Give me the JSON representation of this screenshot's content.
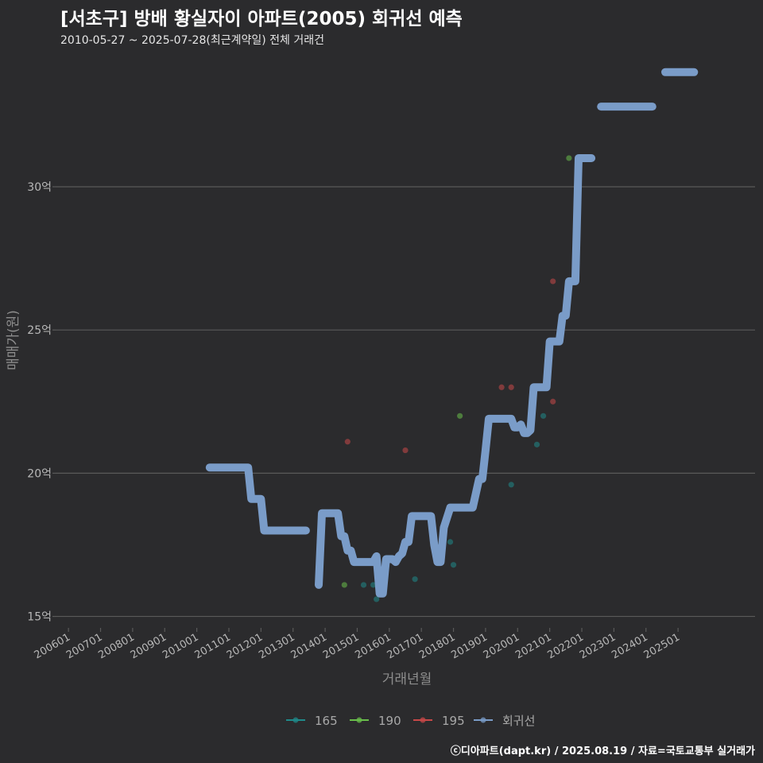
{
  "header": {
    "title": "[서초구] 방배 황실자이 아파트(2005) 회귀선 예측",
    "subtitle": "2010-05-27 ~ 2025-07-28(최근계약일) 전체 거래건"
  },
  "footer": {
    "credit": "ⓒ디아파트(dapt.kr) / 2025.08.19 / 자료=국토교통부 실거래가"
  },
  "colors": {
    "background": "#2b2b2d",
    "grid": "#5a5a5a",
    "s165": "#1f8a8a",
    "s190": "#6abf4b",
    "s195": "#c84848",
    "regression": "#7a9cc8"
  },
  "chart_data": {
    "type": "line",
    "title": "[서초구] 방배 황실자이 아파트(2005) 회귀선 예측",
    "xlabel": "거래년월",
    "ylabel": "매매가(원)",
    "xlim": [
      2005.6,
      2027.4
    ],
    "ylim": [
      14.6,
      34.8
    ],
    "x_ticks": [
      {
        "x": 2006.0,
        "label": "200601"
      },
      {
        "x": 2007.0,
        "label": "200701"
      },
      {
        "x": 2008.0,
        "label": "200801"
      },
      {
        "x": 2009.0,
        "label": "200901"
      },
      {
        "x": 2010.0,
        "label": "201001"
      },
      {
        "x": 2011.0,
        "label": "201101"
      },
      {
        "x": 2012.0,
        "label": "201201"
      },
      {
        "x": 2013.0,
        "label": "201301"
      },
      {
        "x": 2014.0,
        "label": "201401"
      },
      {
        "x": 2015.0,
        "label": "201501"
      },
      {
        "x": 2016.0,
        "label": "201601"
      },
      {
        "x": 2017.0,
        "label": "201701"
      },
      {
        "x": 2018.0,
        "label": "201801"
      },
      {
        "x": 2019.0,
        "label": "201901"
      },
      {
        "x": 2020.0,
        "label": "202001"
      },
      {
        "x": 2021.0,
        "label": "202101"
      },
      {
        "x": 2022.0,
        "label": "202201"
      },
      {
        "x": 2023.0,
        "label": "202301"
      },
      {
        "x": 2024.0,
        "label": "202401"
      },
      {
        "x": 2025.0,
        "label": "202501"
      }
    ],
    "y_ticks": [
      {
        "y": 15,
        "label": "15억"
      },
      {
        "y": 20,
        "label": "20억"
      },
      {
        "y": 25,
        "label": "25억"
      },
      {
        "y": 30,
        "label": "30억"
      }
    ],
    "legend": [
      "165",
      "190",
      "195",
      "회귀선"
    ],
    "series": [
      {
        "name": "165",
        "kind": "scatter",
        "color": "#1f8a8a",
        "points": [
          [
            2015.2,
            16.1
          ],
          [
            2015.5,
            16.1
          ],
          [
            2015.6,
            15.6
          ],
          [
            2016.8,
            16.3
          ],
          [
            2017.9,
            17.6
          ],
          [
            2018.0,
            16.8
          ],
          [
            2019.8,
            19.6
          ],
          [
            2020.6,
            21.0
          ],
          [
            2020.8,
            22.0
          ]
        ]
      },
      {
        "name": "190",
        "kind": "scatter",
        "color": "#6abf4b",
        "points": [
          [
            2014.6,
            16.1
          ],
          [
            2018.2,
            22.0
          ],
          [
            2021.6,
            31.0
          ]
        ]
      },
      {
        "name": "195",
        "kind": "scatter",
        "color": "#c84848",
        "points": [
          [
            2014.7,
            21.1
          ],
          [
            2016.5,
            20.8
          ],
          [
            2019.5,
            23.0
          ],
          [
            2019.8,
            23.0
          ],
          [
            2021.1,
            22.5
          ],
          [
            2021.1,
            26.7
          ]
        ]
      },
      {
        "name": "회귀선",
        "kind": "line",
        "color": "#7a9cc8",
        "segments": [
          [
            [
              2010.4,
              20.2
            ],
            [
              2011.6,
              20.2
            ],
            [
              2011.7,
              19.1
            ],
            [
              2012.0,
              19.1
            ],
            [
              2012.1,
              18.0
            ],
            [
              2013.4,
              18.0
            ]
          ],
          [
            [
              2013.8,
              16.1
            ],
            [
              2013.9,
              18.6
            ],
            [
              2014.4,
              18.6
            ],
            [
              2014.5,
              17.8
            ],
            [
              2014.6,
              17.8
            ],
            [
              2014.7,
              17.3
            ],
            [
              2014.8,
              17.3
            ],
            [
              2014.9,
              16.9
            ],
            [
              2015.5,
              16.9
            ],
            [
              2015.6,
              17.1
            ],
            [
              2015.7,
              15.8
            ],
            [
              2015.8,
              15.8
            ],
            [
              2015.9,
              17.0
            ],
            [
              2016.1,
              17.0
            ],
            [
              2016.2,
              16.9
            ],
            [
              2016.3,
              17.1
            ],
            [
              2016.4,
              17.2
            ],
            [
              2016.5,
              17.6
            ],
            [
              2016.6,
              17.6
            ],
            [
              2016.7,
              18.5
            ],
            [
              2017.3,
              18.5
            ],
            [
              2017.4,
              17.5
            ],
            [
              2017.5,
              16.9
            ],
            [
              2017.6,
              16.9
            ],
            [
              2017.7,
              18.1
            ],
            [
              2017.9,
              18.8
            ],
            [
              2018.6,
              18.8
            ],
            [
              2018.8,
              19.8
            ],
            [
              2018.9,
              19.8
            ],
            [
              2019.0,
              20.8
            ],
            [
              2019.1,
              21.9
            ],
            [
              2019.8,
              21.9
            ],
            [
              2019.9,
              21.6
            ],
            [
              2020.0,
              21.6
            ],
            [
              2020.1,
              21.7
            ],
            [
              2020.2,
              21.4
            ],
            [
              2020.3,
              21.4
            ],
            [
              2020.4,
              21.5
            ],
            [
              2020.5,
              23.0
            ],
            [
              2020.9,
              23.0
            ],
            [
              2021.0,
              24.6
            ],
            [
              2021.3,
              24.6
            ],
            [
              2021.4,
              25.5
            ],
            [
              2021.5,
              25.5
            ],
            [
              2021.6,
              26.7
            ],
            [
              2021.8,
              26.7
            ],
            [
              2021.9,
              31.0
            ],
            [
              2022.3,
              31.0
            ]
          ],
          [
            [
              2022.6,
              32.8
            ],
            [
              2024.2,
              32.8
            ]
          ],
          [
            [
              2024.6,
              34.0
            ],
            [
              2025.5,
              34.0
            ]
          ]
        ]
      }
    ]
  }
}
